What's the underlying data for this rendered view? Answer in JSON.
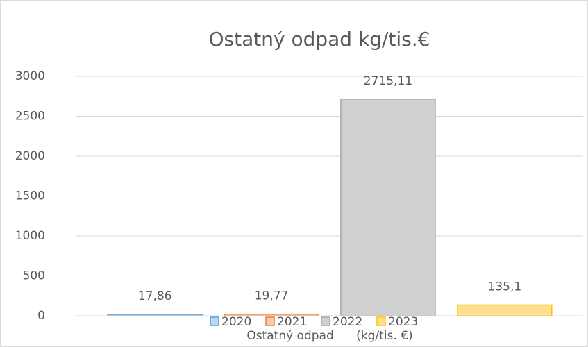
{
  "chart_data": {
    "type": "bar",
    "title": "Ostatný odpad kg/tis.€",
    "categories": [
      "Ostatný odpad      (kg/tis. €)"
    ],
    "series": [
      {
        "name": "2020",
        "color": "#5b9bd5",
        "fill": "#bdd7ee",
        "values": [
          17.86
        ],
        "value_labels": [
          "17,86"
        ]
      },
      {
        "name": "2021",
        "color": "#ed7d31",
        "fill": "#f8cbad",
        "values": [
          19.77
        ],
        "value_labels": [
          "19,77"
        ]
      },
      {
        "name": "2022",
        "color": "#a5a5a5",
        "fill": "#d0d0d0",
        "values": [
          2715.11
        ],
        "value_labels": [
          "2715,11"
        ]
      },
      {
        "name": "2023",
        "color": "#ffc000",
        "fill": "#ffe08c",
        "values": [
          135.1
        ],
        "value_labels": [
          "135,1"
        ]
      }
    ],
    "ylim": [
      0,
      3000
    ],
    "yticks": [
      0,
      500,
      1000,
      1500,
      2000,
      2500,
      3000
    ],
    "grid": true,
    "legend": "bottom"
  }
}
